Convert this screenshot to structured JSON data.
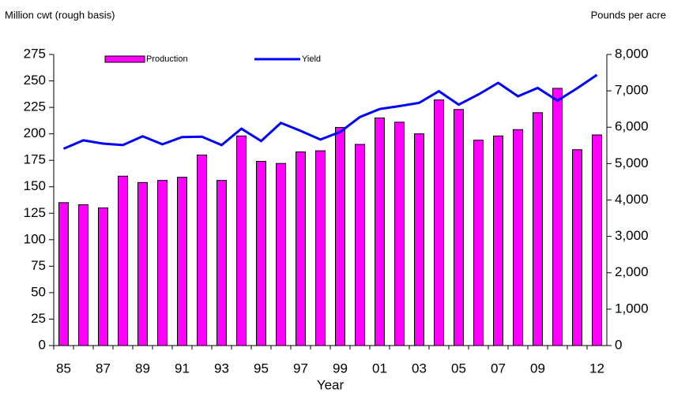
{
  "chart_data": {
    "type": "bar-line",
    "y_label": "Million cwt (rough basis)",
    "y2_label": "Pounds per  acre",
    "x_label": "Year",
    "categories": [
      "85",
      null,
      "87",
      null,
      "89",
      null,
      "91",
      null,
      "93",
      null,
      "95",
      null,
      "97",
      null,
      "99",
      null,
      "01",
      null,
      "03",
      null,
      "05",
      null,
      "07",
      null,
      "09",
      null,
      null,
      "12"
    ],
    "series": [
      {
        "name": "Production",
        "type": "bar",
        "color": "#ff00ff",
        "values": [
          135,
          133,
          130,
          160,
          154,
          156,
          159,
          180,
          156,
          198,
          174,
          172,
          183,
          184,
          206,
          190,
          215,
          211,
          200,
          232,
          223,
          194,
          198,
          204,
          220,
          243,
          185,
          199
        ]
      },
      {
        "name": "Yield",
        "type": "line",
        "color": "#0000ff",
        "axis": "y2",
        "values": [
          5410,
          5640,
          5550,
          5510,
          5750,
          5530,
          5730,
          5740,
          5510,
          5960,
          5620,
          6120,
          5900,
          5660,
          5870,
          6280,
          6500,
          6580,
          6670,
          6990,
          6620,
          6900,
          7220,
          6850,
          7080,
          6730,
          7070,
          7440
        ]
      }
    ],
    "ylim": [
      0,
      275
    ],
    "yticks": [
      0,
      25,
      50,
      75,
      100,
      125,
      150,
      175,
      200,
      225,
      250,
      275
    ],
    "y2lim": [
      0,
      8000
    ],
    "y2ticks": [
      0,
      {
        "value": 1000,
        "label": "1,000"
      },
      {
        "value": 2000,
        "label": "2,000"
      },
      {
        "value": 3000,
        "label": "3,000"
      },
      {
        "value": 4000,
        "label": "4,000"
      },
      {
        "value": 5000,
        "label": "5,000"
      },
      {
        "value": 6000,
        "label": "6,000"
      },
      {
        "value": 7000,
        "label": "7,000"
      },
      {
        "value": 8000,
        "label": "8,000"
      }
    ]
  }
}
